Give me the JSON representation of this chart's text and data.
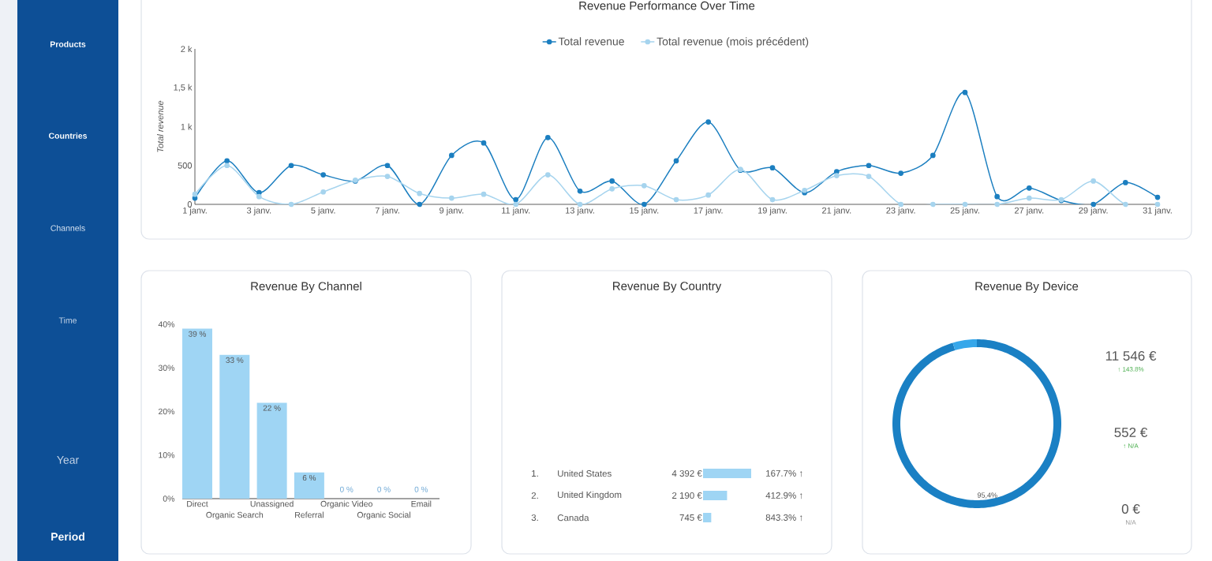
{
  "chart_data": [
    {
      "type": "other",
      "annotations": [
        "Products",
        "Countries",
        "Channels",
        "Time",
        "Year",
        "Period"
      ]
    },
    {
      "type": "line",
      "title": "Revenue Performance Over Time",
      "ylabel": "Total revenue",
      "categories": [
        "1 janv.",
        null,
        "3 janv.",
        null,
        "5 janv.",
        null,
        "7 janv.",
        null,
        "9 janv.",
        null,
        "11 janv.",
        null,
        "13 janv.",
        null,
        "15 janv.",
        null,
        "17 janv.",
        null,
        "19 janv.",
        null,
        "21 janv.",
        null,
        "23 janv.",
        null,
        "25 janv.",
        null,
        "27 janv.",
        null,
        "29 janv.",
        null,
        "31 janv."
      ],
      "series": [
        {
          "name": "Total revenue",
          "color": "#1c7fc0",
          "values": [
            80,
            560,
            150,
            500,
            380,
            300,
            500,
            0,
            630,
            790,
            60,
            860,
            170,
            300,
            0,
            560,
            1060,
            440,
            470,
            150,
            420,
            500,
            400,
            630,
            1440,
            100,
            210,
            50,
            0,
            280,
            90
          ]
        },
        {
          "name": "Total revenue (mois précédent)",
          "color": "#a6d4ee",
          "values": [
            130,
            500,
            100,
            0,
            160,
            310,
            360,
            140,
            80,
            130,
            0,
            380,
            0,
            200,
            240,
            60,
            120,
            450,
            60,
            180,
            370,
            360,
            0,
            0,
            0,
            0,
            80,
            60,
            300,
            0,
            0
          ]
        }
      ],
      "ylim": [
        0,
        2000
      ],
      "yticks": [
        0,
        500,
        {
          "value": 1000,
          "label": "1 k"
        },
        {
          "value": 1500,
          "label": "1,5 k"
        },
        {
          "value": 2000,
          "label": "2 k"
        }
      ],
      "legend": "top",
      "marker": "circle"
    },
    {
      "type": "bar",
      "title": "Revenue By Channel",
      "categories": [
        "Direct",
        "Organic Search",
        "Unassigned",
        "Referral",
        "Organic Video",
        "Organic Social",
        "Email"
      ],
      "values": [
        39,
        33,
        22,
        6,
        0,
        0,
        0
      ],
      "color": "#9fd5f4",
      "value_labels": [
        "39 %",
        "33 %",
        "22 %",
        "6 %",
        "0 %",
        "0 %",
        "0 %"
      ],
      "ylim": [
        0,
        40
      ],
      "yticks": [
        {
          "value": 0,
          "label": "0%"
        },
        {
          "value": 10,
          "label": "10%"
        },
        {
          "value": 20,
          "label": "20%"
        },
        {
          "value": 30,
          "label": "30%"
        },
        {
          "value": 40,
          "label": "40%"
        }
      ]
    },
    {
      "type": "bar",
      "orientation": "horizontal",
      "title": "Revenue By Country",
      "categories": [
        "United States",
        "United Kingdom",
        "Canada"
      ],
      "values": [
        4392,
        2190,
        745
      ],
      "color": "#9fd5f4",
      "value_labels": [
        "4 392 €",
        "2 190 €",
        "745 €"
      ],
      "tick_labels": "y",
      "annotations": [
        "1.",
        "2.",
        "3.",
        "167.7% ↑",
        "412.9% ↑",
        "843.3% ↑"
      ]
    },
    {
      "type": "donut",
      "title": "Revenue By Device",
      "categories": [
        null,
        null,
        null
      ],
      "values": [
        95.4,
        4.6,
        0
      ],
      "colors": [
        "#1a80c4",
        "#36a7ea",
        "#9fd5f4"
      ],
      "value_labels": [
        "95,4%",
        null,
        null
      ],
      "annotations": [
        "11 546 €",
        "↑ 143.8%",
        "552 €",
        "↑ N/A",
        "0 €",
        "N/A"
      ]
    }
  ]
}
